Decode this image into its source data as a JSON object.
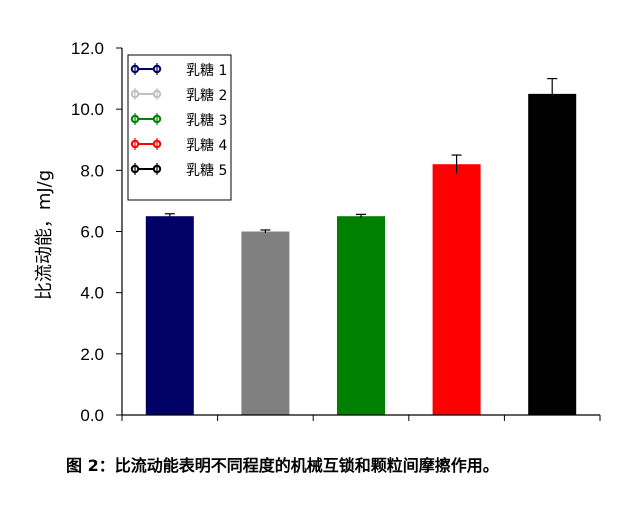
{
  "chart_data": {
    "type": "bar",
    "categories": [
      "乳糖 1",
      "乳糖 2",
      "乳糖 3",
      "乳糖 4",
      "乳糖 5"
    ],
    "values": [
      6.5,
      6.0,
      6.5,
      8.2,
      10.5
    ],
    "errors": [
      0.08,
      0.05,
      0.06,
      0.3,
      0.5
    ],
    "colors": [
      "#000066",
      "#808080",
      "#008000",
      "#ff0000",
      "#000000"
    ],
    "ylabel": "比流动能，mJ/g",
    "xlabel": "",
    "ylim": [
      0,
      12
    ],
    "yticks": [
      "0.0",
      "2.0",
      "4.0",
      "6.0",
      "8.0",
      "10.0",
      "12.0"
    ],
    "legend": {
      "placement": "top-left",
      "entries": [
        "乳糖 1",
        "乳糖 2",
        "乳糖 3",
        "乳糖 4",
        "乳糖 5"
      ]
    },
    "grid": false
  },
  "caption": "图 2：比流动能表明不同程度的机械互锁和颗粒间摩擦作用。"
}
